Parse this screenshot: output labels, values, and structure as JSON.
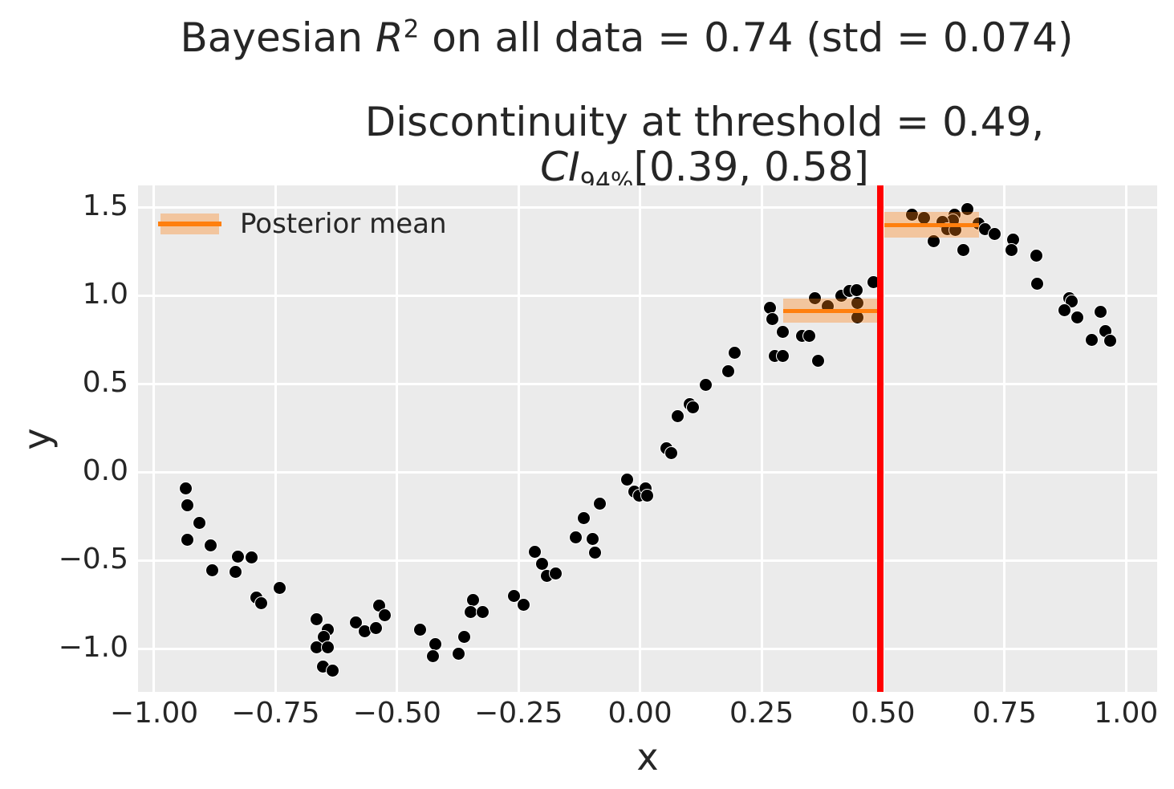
{
  "figure": {
    "title": {
      "prefix": "Bayesian ",
      "variable": "R",
      "exponent": "2",
      "suffix": " on all data = 0.74 (std = 0.074)"
    },
    "subtitle": {
      "line1": "Discontinuity at threshold = 0.49,",
      "ci_label": "CI",
      "ci_subscript": "94%",
      "ci_interval": "[0.39, 0.58]"
    },
    "axes": {
      "xlabel": "x",
      "ylabel": "y"
    },
    "legend": {
      "label": "Posterior mean"
    }
  },
  "chart_data": {
    "type": "scatter",
    "title": "Bayesian R^2 on all data = 0.74 (std = 0.074)",
    "subtitle": "Discontinuity at threshold = 0.49, CI_94% [0.39, 0.58]",
    "xlabel": "x",
    "ylabel": "y",
    "xlim": [
      -1.033,
      1.064
    ],
    "ylim": [
      -1.245,
      1.623
    ],
    "grid": true,
    "legend_position": "upper left",
    "x_ticks": {
      "values": [
        -1.0,
        -0.75,
        -0.5,
        -0.25,
        0.0,
        0.25,
        0.5,
        0.75,
        1.0
      ],
      "labels": [
        "−1.00",
        "−0.75",
        "−0.50",
        "−0.25",
        "0.00",
        "0.25",
        "0.50",
        "0.75",
        "1.00"
      ]
    },
    "y_ticks": {
      "values": [
        1.5,
        1.0,
        0.5,
        0.0,
        -0.5,
        -1.0
      ],
      "labels": [
        "1.5",
        "1.0",
        "0.5",
        "0.0",
        "−0.5",
        "−1.0"
      ]
    },
    "threshold_line": {
      "x": 0.495,
      "label_value": 0.49
    },
    "posterior_segments": [
      {
        "x_start": 0.295,
        "x_end": 0.495,
        "mean": 0.913,
        "ci_low": 0.845,
        "ci_high": 0.982
      },
      {
        "x_start": 0.503,
        "x_end": 0.698,
        "mean": 1.4,
        "ci_low": 1.327,
        "ci_high": 1.473
      }
    ],
    "points": [
      [
        -0.934,
        -0.095
      ],
      [
        -0.931,
        -0.186
      ],
      [
        -0.906,
        -0.286
      ],
      [
        -0.931,
        -0.382
      ],
      [
        -0.883,
        -0.414
      ],
      [
        -0.827,
        -0.477
      ],
      [
        -0.8,
        -0.482
      ],
      [
        -0.881,
        -0.555
      ],
      [
        -0.833,
        -0.564
      ],
      [
        -0.741,
        -0.655
      ],
      [
        -0.789,
        -0.709
      ],
      [
        -0.78,
        -0.741
      ],
      [
        -0.666,
        -0.832
      ],
      [
        -0.642,
        -0.895
      ],
      [
        -0.65,
        -0.932
      ],
      [
        -0.666,
        -0.995
      ],
      [
        -0.642,
        -0.995
      ],
      [
        -0.653,
        -1.1
      ],
      [
        -0.633,
        -1.123
      ],
      [
        -0.584,
        -0.85
      ],
      [
        -0.567,
        -0.9
      ],
      [
        -0.544,
        -0.882
      ],
      [
        -0.536,
        -0.755
      ],
      [
        -0.526,
        -0.809
      ],
      [
        -0.452,
        -0.895
      ],
      [
        -0.422,
        -0.973
      ],
      [
        -0.427,
        -1.045
      ],
      [
        -0.374,
        -1.027
      ],
      [
        -0.361,
        -0.932
      ],
      [
        -0.344,
        -0.723
      ],
      [
        -0.349,
        -0.795
      ],
      [
        -0.323,
        -0.795
      ],
      [
        -0.26,
        -0.7
      ],
      [
        -0.239,
        -0.75
      ],
      [
        -0.217,
        -0.45
      ],
      [
        -0.202,
        -0.518
      ],
      [
        -0.192,
        -0.586
      ],
      [
        -0.174,
        -0.573
      ],
      [
        -0.133,
        -0.368
      ],
      [
        -0.115,
        -0.259
      ],
      [
        -0.097,
        -0.377
      ],
      [
        -0.092,
        -0.455
      ],
      [
        -0.082,
        -0.177
      ],
      [
        -0.027,
        -0.045
      ],
      [
        -0.012,
        -0.109
      ],
      [
        -0.002,
        -0.132
      ],
      [
        0.011,
        -0.095
      ],
      [
        0.014,
        -0.132
      ],
      [
        0.054,
        0.136
      ],
      [
        0.064,
        0.109
      ],
      [
        0.078,
        0.314
      ],
      [
        0.102,
        0.386
      ],
      [
        0.108,
        0.364
      ],
      [
        0.136,
        0.495
      ],
      [
        0.181,
        0.573
      ],
      [
        0.194,
        0.677
      ],
      [
        0.268,
        0.932
      ],
      [
        0.272,
        0.868
      ],
      [
        0.278,
        0.659
      ],
      [
        0.293,
        0.659
      ],
      [
        0.293,
        0.795
      ],
      [
        0.333,
        0.773
      ],
      [
        0.348,
        0.773
      ],
      [
        0.366,
        0.632
      ],
      [
        0.359,
        0.986
      ],
      [
        0.386,
        0.941
      ],
      [
        0.414,
        1.0
      ],
      [
        0.43,
        1.027
      ],
      [
        0.445,
        1.032
      ],
      [
        0.448,
        0.955
      ],
      [
        0.448,
        0.877
      ],
      [
        0.481,
        1.077
      ],
      [
        0.559,
        1.455
      ],
      [
        0.585,
        1.441
      ],
      [
        0.673,
        1.491
      ],
      [
        0.647,
        1.455
      ],
      [
        0.643,
        1.427
      ],
      [
        0.623,
        1.414
      ],
      [
        0.632,
        1.377
      ],
      [
        0.648,
        1.373
      ],
      [
        0.696,
        1.405
      ],
      [
        0.709,
        1.377
      ],
      [
        0.729,
        1.35
      ],
      [
        0.604,
        1.305
      ],
      [
        0.665,
        1.259
      ],
      [
        0.767,
        1.314
      ],
      [
        0.764,
        1.259
      ],
      [
        0.815,
        1.227
      ],
      [
        0.817,
        1.068
      ],
      [
        0.884,
        0.986
      ],
      [
        0.888,
        0.964
      ],
      [
        0.874,
        0.918
      ],
      [
        0.899,
        0.877
      ],
      [
        0.947,
        0.909
      ],
      [
        0.957,
        0.8
      ],
      [
        0.929,
        0.75
      ],
      [
        0.967,
        0.745
      ]
    ],
    "colors": {
      "point": "#000000",
      "point_edge": "#ffffff",
      "posterior_mean": "#ff7f0e",
      "ci_band": "rgba(255,127,14,0.35)",
      "threshold": "#ff0000",
      "plot_bg": "#ebebeb",
      "grid": "#ffffff",
      "text": "#262626"
    }
  }
}
